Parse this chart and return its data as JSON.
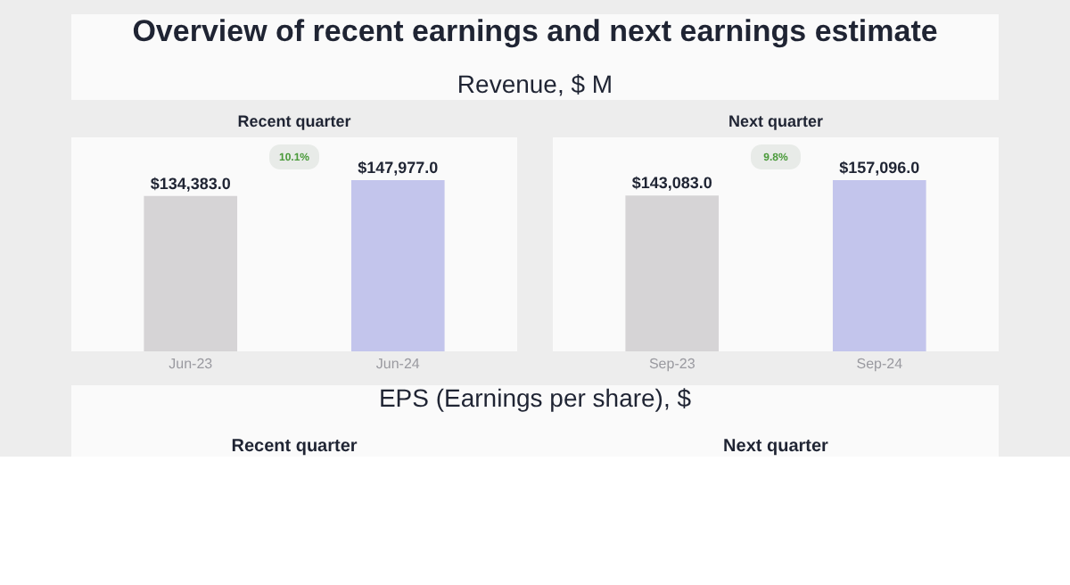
{
  "chart_data": [
    {
      "type": "other",
      "title": "Overview of recent earnings and next earnings estimate",
      "annotations": [
        "Revenue, $ M",
        "EPS (Earnings per share), $",
        "Recent quarter",
        "Next quarter"
      ]
    },
    {
      "type": "bar",
      "title": "Recent quarter",
      "categories": [
        "Jun-23",
        "Jun-24"
      ],
      "values": [
        134383.0,
        147977.0
      ],
      "colors": [
        "#d6d4d6",
        "#c3c5ec"
      ],
      "value_labels": [
        "$134,383.0",
        "$147,977.0"
      ],
      "annotations": [
        "10.1%"
      ]
    },
    {
      "type": "bar",
      "title": "Next quarter",
      "categories": [
        "Sep-23",
        "Sep-24"
      ],
      "values": [
        143083.0,
        157096.0
      ],
      "colors": [
        "#d6d4d6",
        "#c3c5ec"
      ],
      "value_labels": [
        "$143,083.0",
        "$157,096.0"
      ],
      "annotations": [
        "9.8%"
      ]
    }
  ]
}
